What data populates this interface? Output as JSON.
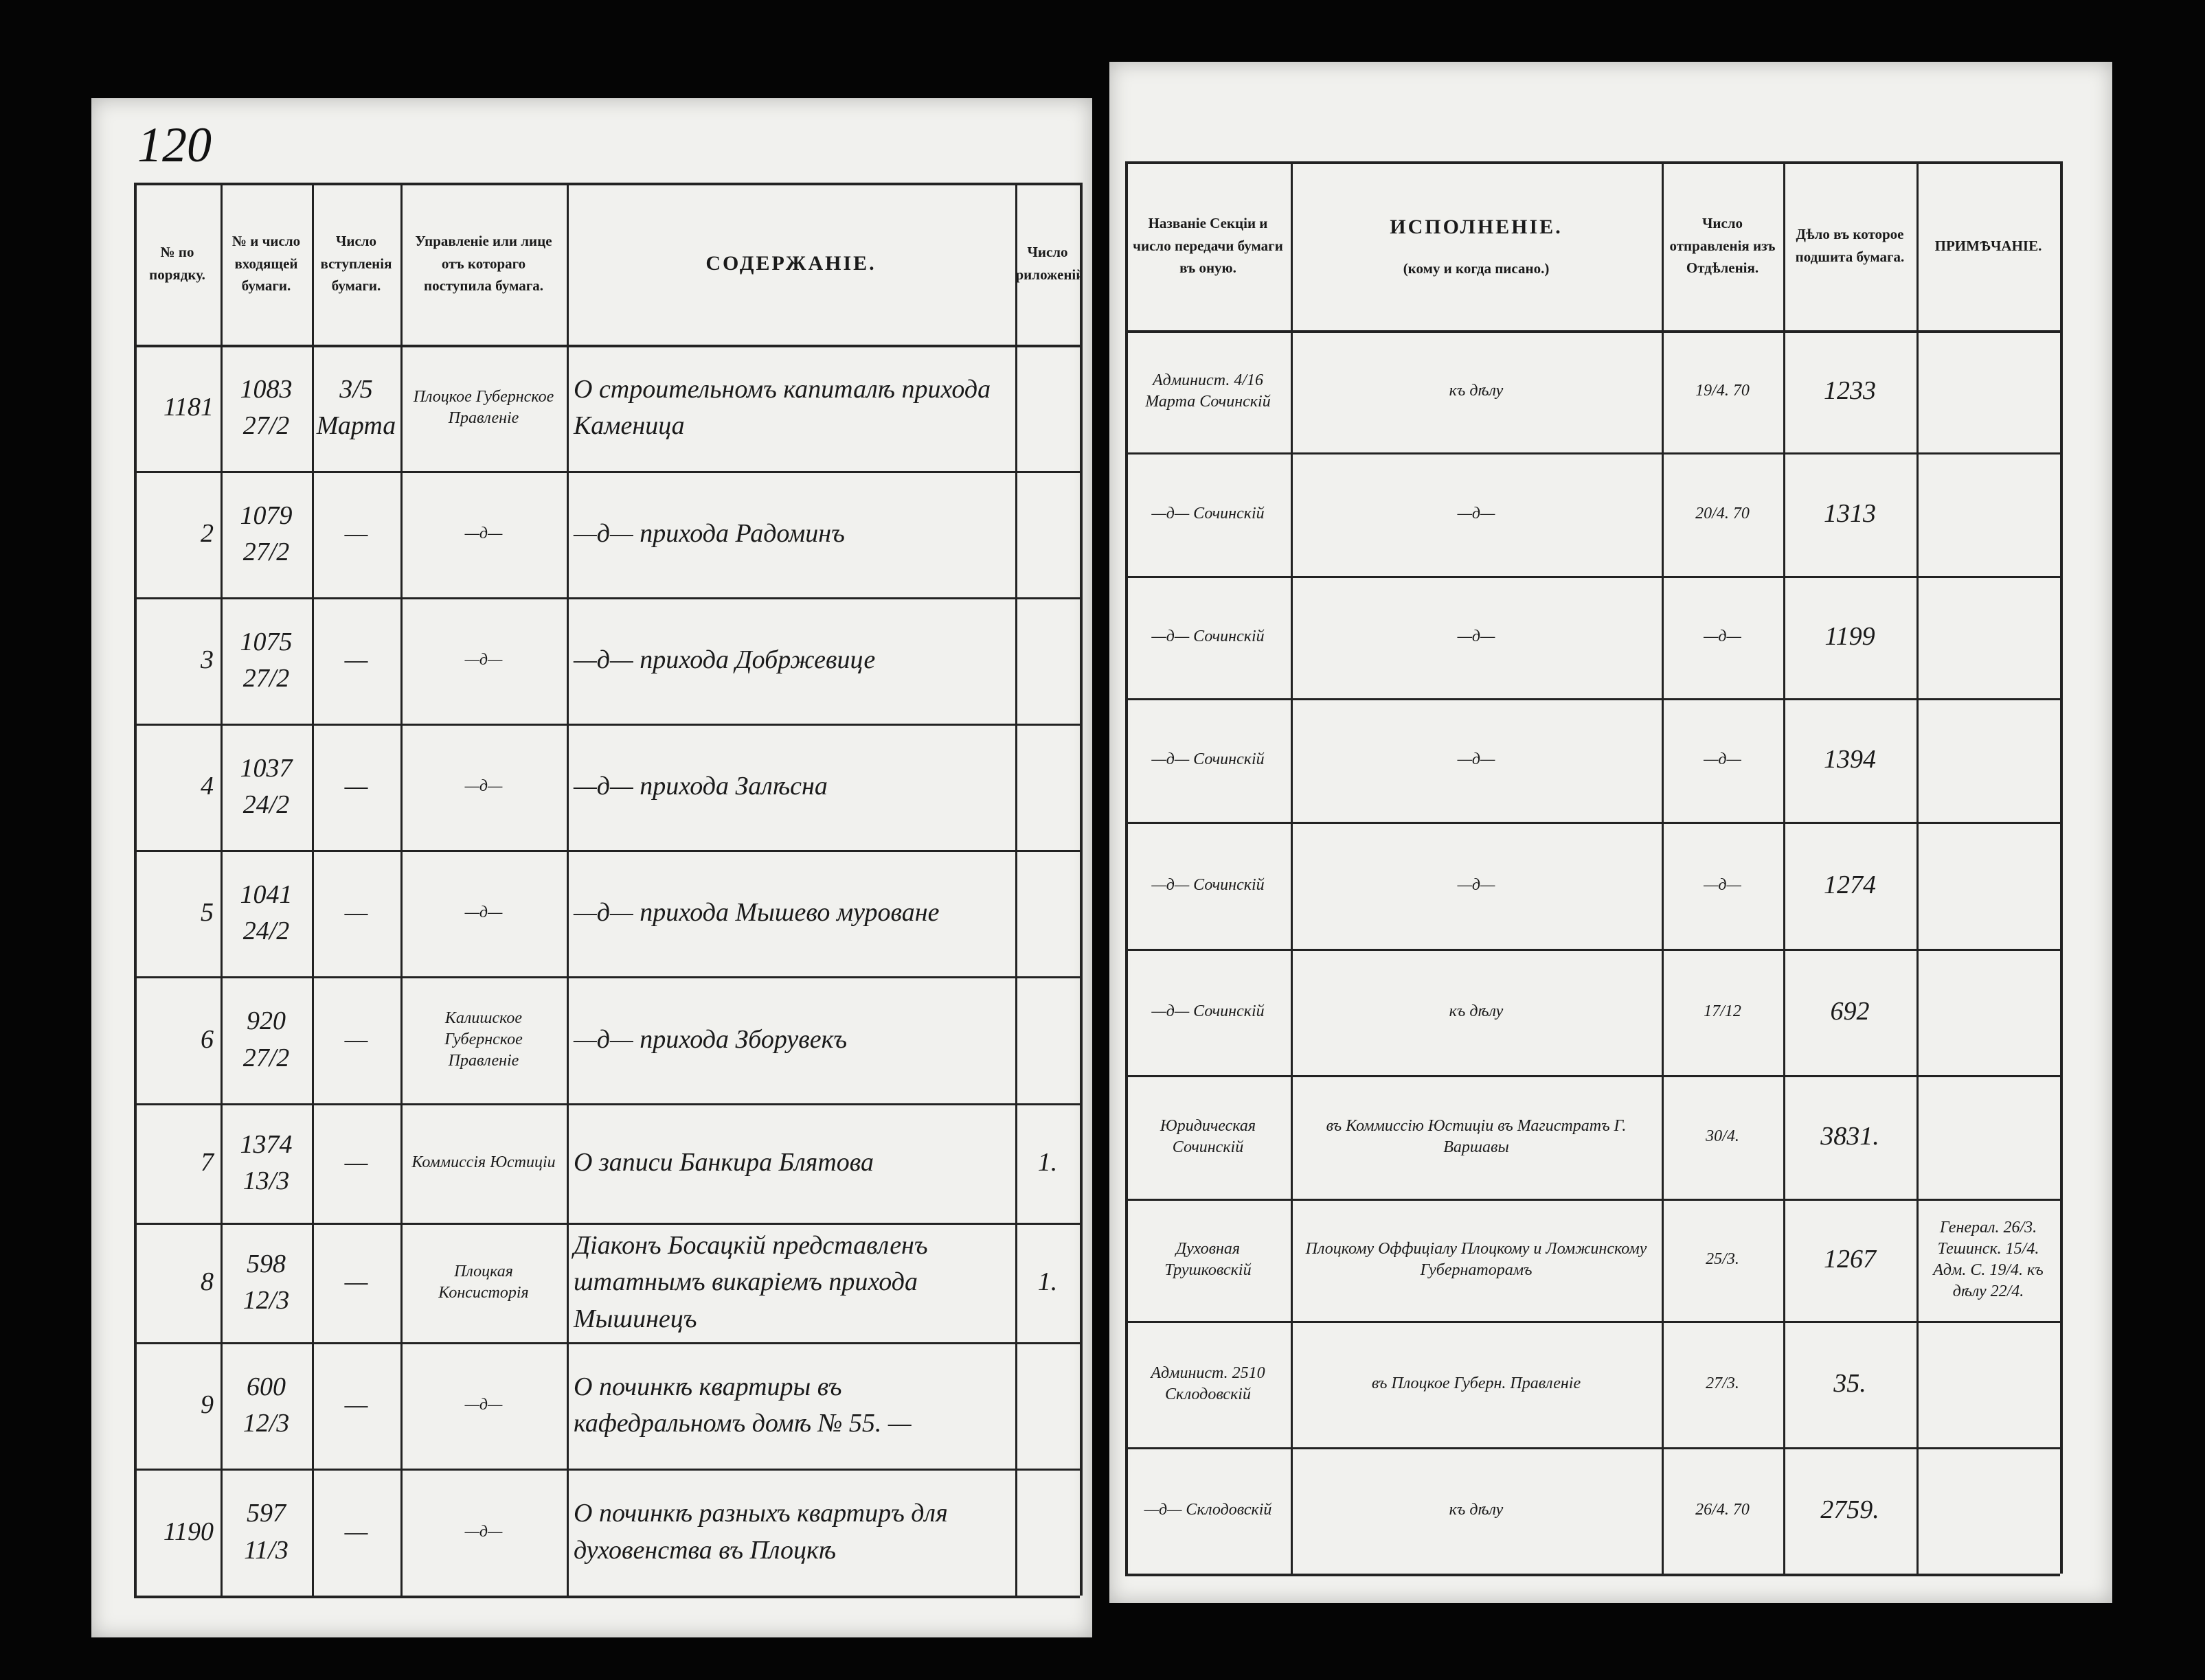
{
  "page_number": "120",
  "left": {
    "headers": [
      "№ по порядку.",
      "№ и число входящей бумаги.",
      "Число вступленія бумаги.",
      "Управленіе или лице отъ котораго поступила бумага.",
      "СОДЕРЖАНІЕ.",
      "Число приложеній."
    ],
    "rows": [
      {
        "no": "1181",
        "incoming": "1083 27/2",
        "date": "3/5 Марта",
        "from": "Плоцкое Губернское Правленіе",
        "content": "О строительномъ капиталѣ прихода Каменица"
      },
      {
        "no": "2",
        "incoming": "1079 27/2",
        "date": "—",
        "from": "—д—",
        "content": "—д— прихода Радоминъ"
      },
      {
        "no": "3",
        "incoming": "1075 27/2",
        "date": "—",
        "from": "—д—",
        "content": "—д— прихода Добржевице"
      },
      {
        "no": "4",
        "incoming": "1037 24/2",
        "date": "—",
        "from": "—д—",
        "content": "—д— прихода Залѣсна"
      },
      {
        "no": "5",
        "incoming": "1041 24/2",
        "date": "—",
        "from": "—д—",
        "content": "—д— прихода Мышево мурованe"
      },
      {
        "no": "6",
        "incoming": "920 27/2",
        "date": "—",
        "from": "Калишское Губернское Правленіе",
        "content": "—д— прихода Зборувекъ"
      },
      {
        "no": "7",
        "incoming": "1374 13/3",
        "date": "—",
        "from": "Коммиссія Юстиціи",
        "content": "О записи Банкира Блятова",
        "attachments": "1."
      },
      {
        "no": "8",
        "incoming": "598 12/3",
        "date": "—",
        "from": "Плоцкая Консисторія",
        "content": "Діаконъ Босацкій представленъ штатнымъ викаріемъ прихода Мышинецъ",
        "attachments": "1."
      },
      {
        "no": "9",
        "incoming": "600 12/3",
        "date": "—",
        "from": "—д—",
        "content": "О починкѣ квартиры въ кафедральномъ домѣ № 55. —"
      },
      {
        "no": "1190",
        "incoming": "597 11/3",
        "date": "—",
        "from": "—д—",
        "content": "О починкѣ разныхъ квартиръ для духовенства въ Плоцкѣ"
      }
    ]
  },
  "right": {
    "headers": [
      "Названіе Секціи и число передачи бумаги въ оную.",
      "ИСПОЛНЕНІЕ.",
      "Число отправленія изъ Отдѣленія.",
      "Дѣло въ которое подшита бумага.",
      "ПРИМѢЧАНІЕ."
    ],
    "header_note": "(кому и когда писано.)",
    "rows": [
      {
        "section": "Админист. 4/16 Марта Сочинскій",
        "execution": "къ дѣлу",
        "sent": "19/4. 70",
        "case": "1233"
      },
      {
        "section": "—д— Сочинскій",
        "execution": "—д—",
        "sent": "20/4. 70",
        "case": "1313"
      },
      {
        "section": "—д— Сочинскій",
        "execution": "—д—",
        "sent": "—д—",
        "case": "1199"
      },
      {
        "section": "—д— Сочинскій",
        "execution": "—д—",
        "sent": "—д—",
        "case": "1394"
      },
      {
        "section": "—д— Сочинскій",
        "execution": "—д—",
        "sent": "—д—",
        "case": "1274"
      },
      {
        "section": "—д— Сочинскій",
        "execution": "къ дѣлу",
        "sent": "17/12",
        "case": "692"
      },
      {
        "section": "Юридическая Сочинскій",
        "execution": "въ Коммиссію Юстиціи въ Магистратъ Г. Варшавы",
        "sent": "30/4.",
        "case": "3831."
      },
      {
        "section": "Духовная Трушковскій",
        "execution": "Плоцкому Оффиціалу Плоцкому и Ломжинскому Губернаторамъ",
        "sent": "25/3.",
        "case": "1267",
        "notes": "Генерал. 26/3. Тешинск. 15/4. Адм. С. 19/4. къ дѣлу 22/4."
      },
      {
        "section": "Админист. 2510 Склодовскій",
        "execution": "въ Плоцкое Губерн. Правленіе",
        "sent": "27/3.",
        "case": "35."
      },
      {
        "section": "—д— Склодовскій",
        "execution": "къ дѣлу",
        "sent": "26/4. 70",
        "case": "2759."
      }
    ]
  }
}
